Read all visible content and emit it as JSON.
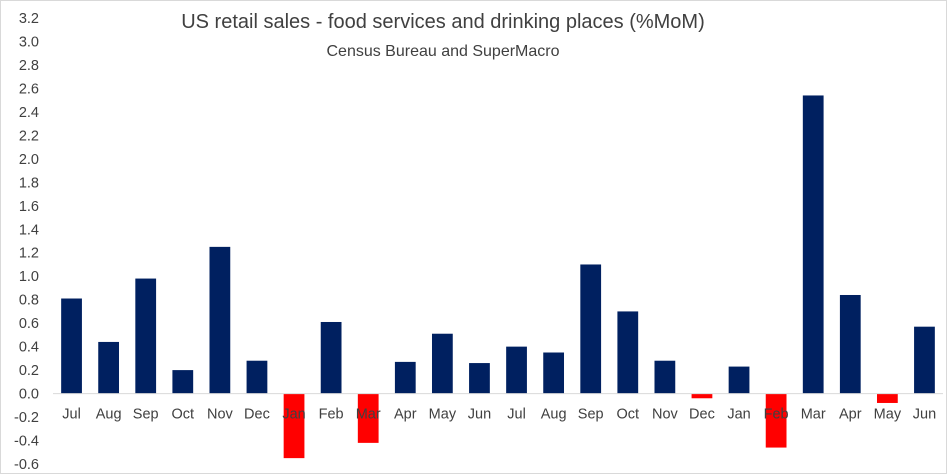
{
  "chart_data": {
    "type": "bar",
    "title": "US retail sales - food services and drinking places (%MoM)",
    "subtitle": "Census Bureau and SuperMacro",
    "categories": [
      "Jul",
      "Aug",
      "Sep",
      "Oct",
      "Nov",
      "Dec",
      "Jan",
      "Feb",
      "Mar",
      "Apr",
      "May",
      "Jun",
      "Jul",
      "Aug",
      "Sep",
      "Oct",
      "Nov",
      "Dec",
      "Jan",
      "Feb",
      "Mar",
      "Apr",
      "May",
      "Jun"
    ],
    "values": [
      0.81,
      0.44,
      0.98,
      0.2,
      1.25,
      0.28,
      -0.55,
      0.61,
      -0.42,
      0.27,
      0.51,
      0.26,
      0.4,
      0.35,
      1.1,
      0.7,
      0.28,
      -0.04,
      0.23,
      -0.46,
      2.54,
      0.84,
      -0.08,
      0.57
    ],
    "ylim": [
      -0.6,
      3.2
    ],
    "yticks": [
      "3.2",
      "3.0",
      "2.8",
      "2.6",
      "2.4",
      "2.2",
      "2.0",
      "1.8",
      "1.6",
      "1.4",
      "1.2",
      "1.0",
      "0.8",
      "0.6",
      "0.4",
      "0.2",
      "0.0",
      "-0.2",
      "-0.4",
      "-0.6"
    ],
    "xlabel": "",
    "ylabel": "",
    "grid": false,
    "legend": "none",
    "colors": {
      "positive": "#002060",
      "negative": "#ff0000",
      "text": "#404040",
      "axis": "#d9d9d9"
    }
  }
}
